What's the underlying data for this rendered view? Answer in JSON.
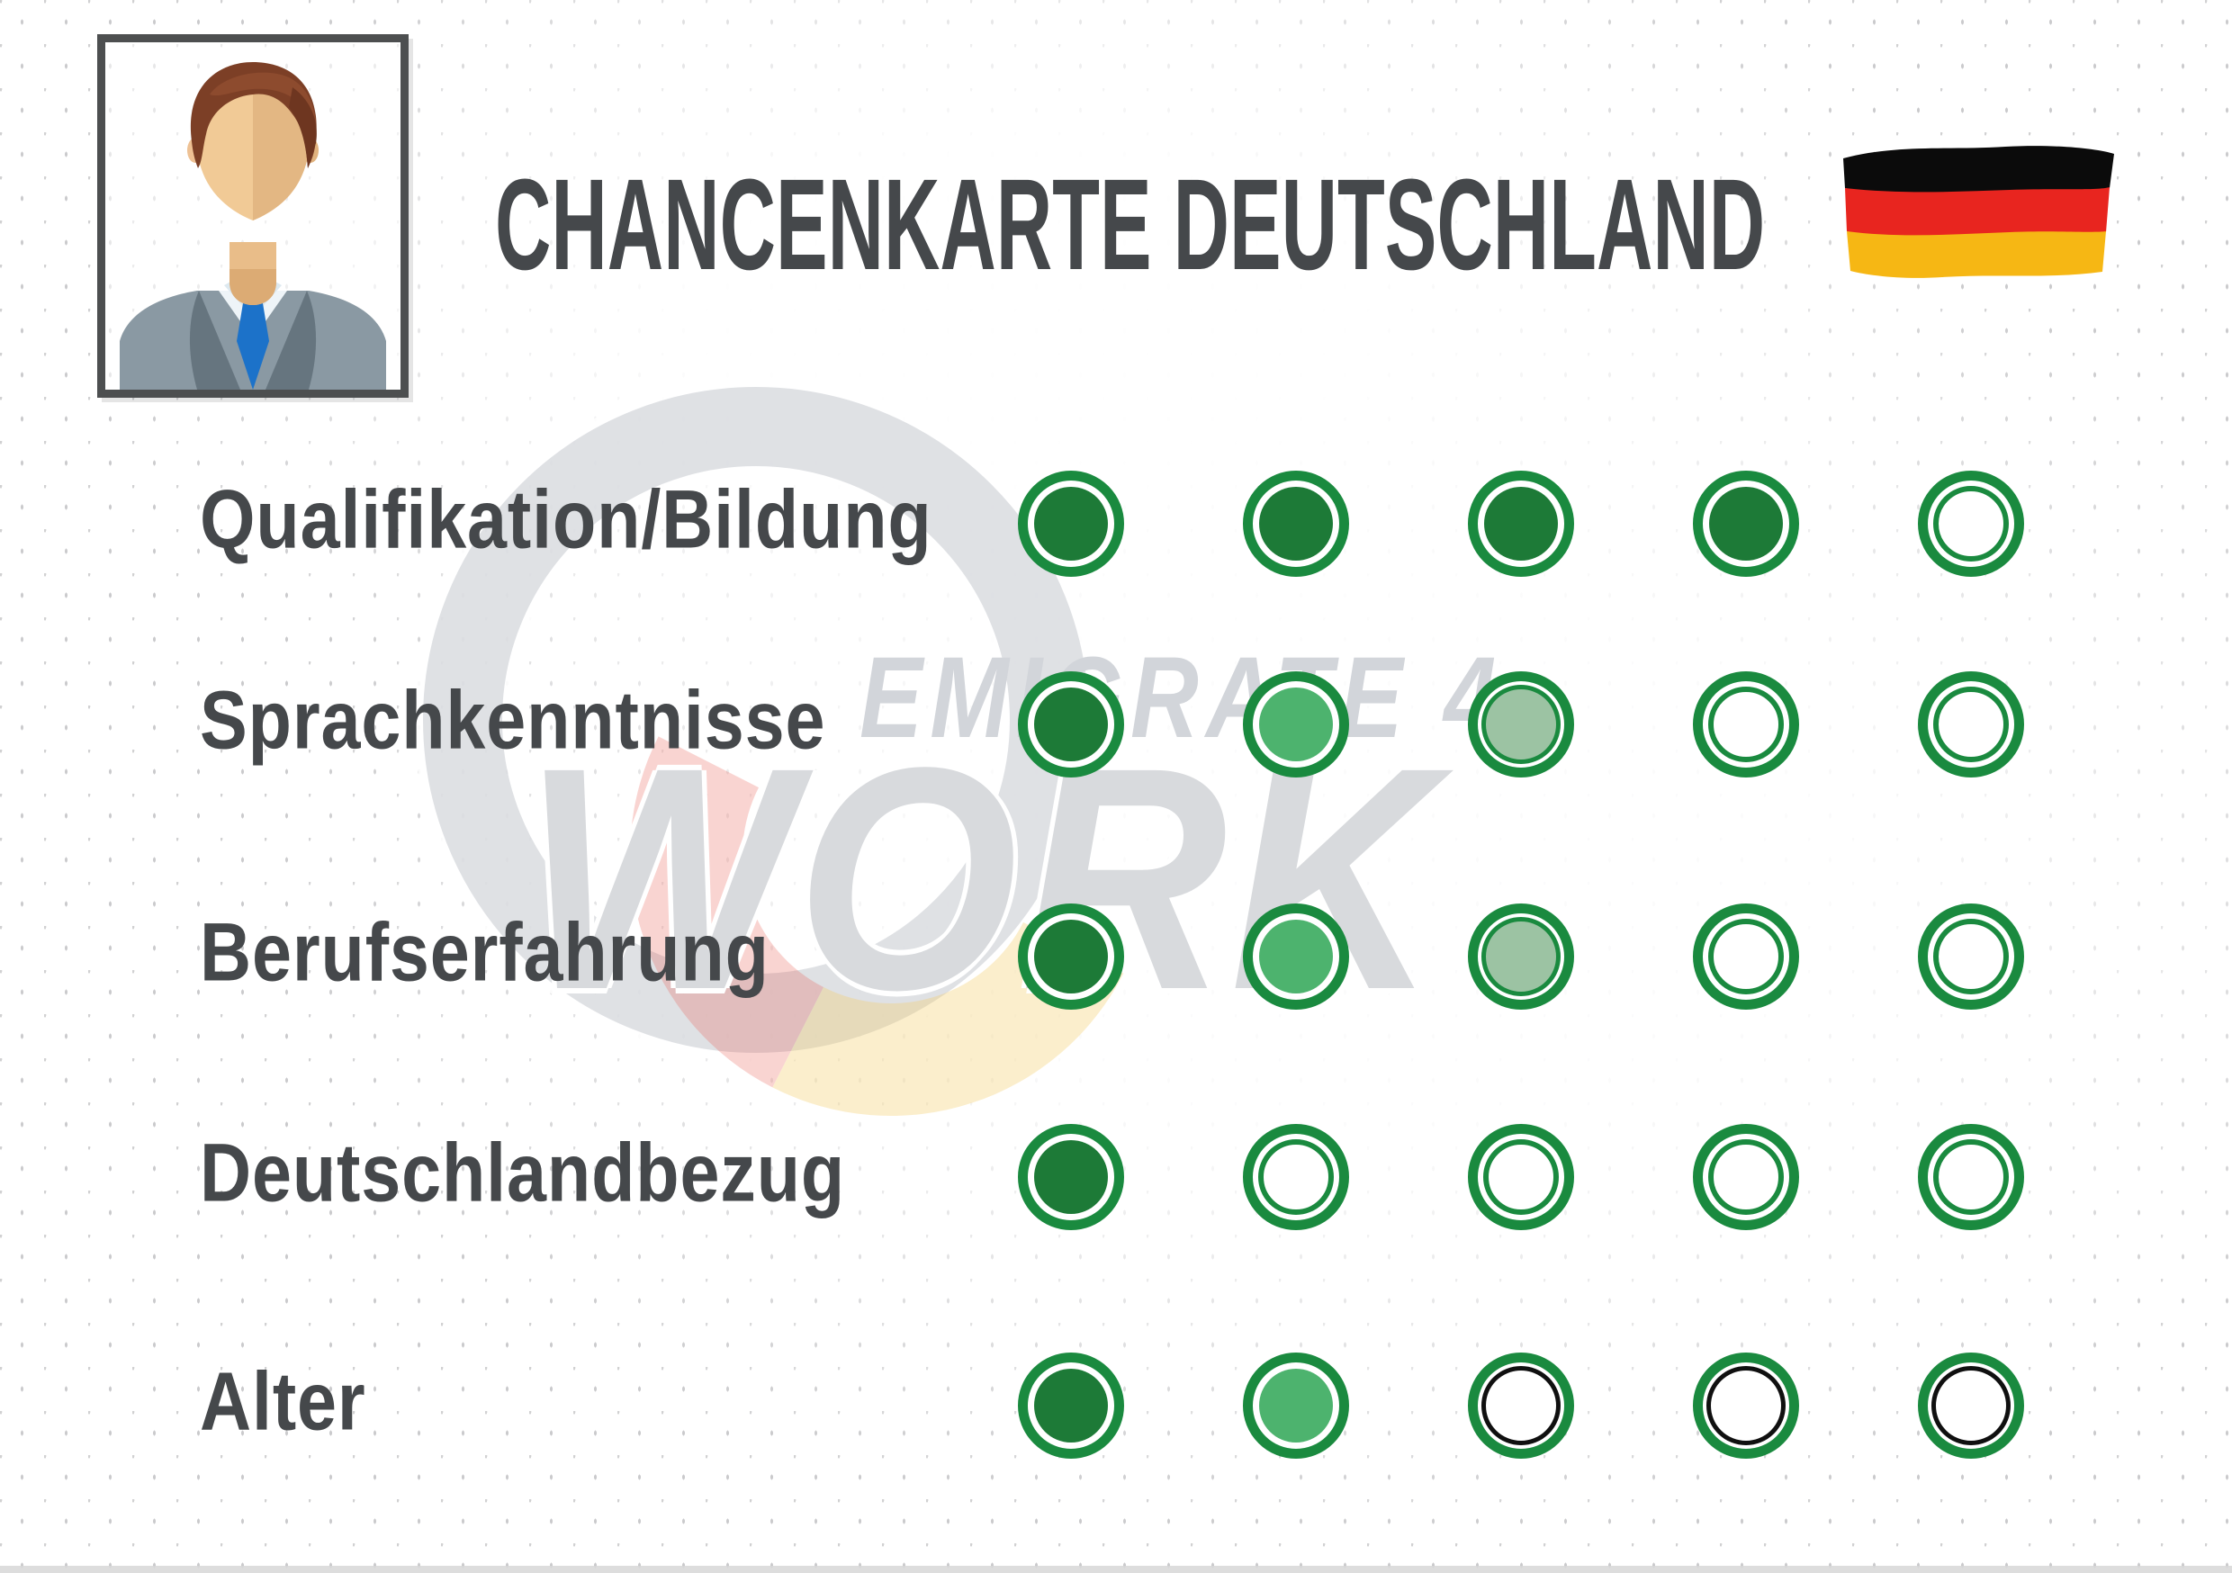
{
  "header": {
    "title": "CHANCENKARTE DEUTSCHLAND"
  },
  "watermark": {
    "line1": "EMIGRATE 4",
    "line2": "WORK"
  },
  "flag": {
    "country": "germany",
    "stripe_colors": [
      "#0b0b0b",
      "#e8251f",
      "#f6b714"
    ]
  },
  "colors": {
    "ring_green": "#1a8a3f",
    "dot_dark": "#1d7a37",
    "dot_medium": "#4db36e",
    "dot_light": "#9cc3a3",
    "ring_black": "#101010",
    "text": "#45484b",
    "watermark_gray": "#d7d9dd"
  },
  "chart_data": {
    "type": "table",
    "title": "CHANCENKARTE DEUTSCHLAND",
    "description": "rating matrix, five dots per category",
    "max_score": 5,
    "categories": [
      "Qualifikation/Bildung",
      "Sprachkenntnisse",
      "Berufserfahrung",
      "Deutschlandbezug",
      "Alter"
    ],
    "rows": [
      {
        "label": "Qualifikation/Bildung",
        "filled": 4,
        "dots": [
          "dark",
          "dark",
          "dark",
          "dark",
          "empty"
        ]
      },
      {
        "label": "Sprachkenntnisse",
        "filled": 3,
        "dots": [
          "dark",
          "medium",
          "light",
          "empty",
          "empty"
        ]
      },
      {
        "label": "Berufserfahrung",
        "filled": 3,
        "dots": [
          "dark",
          "medium",
          "light",
          "empty",
          "empty"
        ]
      },
      {
        "label": "Deutschlandbezug",
        "filled": 1,
        "dots": [
          "dark",
          "empty",
          "empty",
          "empty",
          "empty"
        ]
      },
      {
        "label": "Alter",
        "filled": 2,
        "dots": [
          "dark",
          "medium",
          "empty-black",
          "empty-black",
          "empty-black"
        ]
      }
    ]
  }
}
